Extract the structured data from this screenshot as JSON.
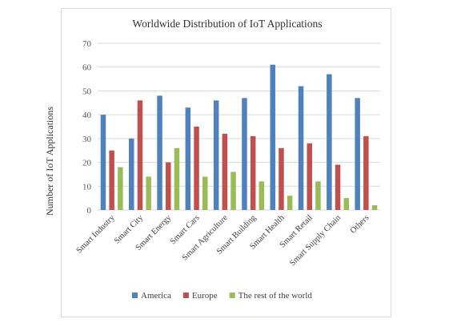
{
  "chart_data": {
    "type": "bar",
    "title": "Worldwide Distribution of IoT Applications",
    "ylabel": "Number of IoT Applications",
    "xlabel": "",
    "ylim": [
      0,
      70
    ],
    "yticks": [
      0,
      10,
      20,
      30,
      40,
      50,
      60,
      70
    ],
    "grid": true,
    "legend_position": "bottom",
    "categories": [
      "Smart Industry",
      "Smart City",
      "Smart Energy",
      "Smart Cars",
      "Smart Agriculture",
      "Smart Building",
      "Smart Health",
      "Smart Retail",
      "Smart Supply Chain",
      "Others"
    ],
    "series": [
      {
        "name": "America",
        "color": "#4f81bd",
        "values": [
          40,
          30,
          48,
          43,
          46,
          47,
          61,
          52,
          57,
          47
        ]
      },
      {
        "name": "Europe",
        "color": "#c0504d",
        "values": [
          25,
          46,
          20,
          35,
          32,
          31,
          26,
          28,
          19,
          31
        ]
      },
      {
        "name": "The rest of the world",
        "color": "#9bbb59",
        "values": [
          18,
          14,
          26,
          14,
          16,
          12,
          6,
          12,
          5,
          2
        ]
      }
    ]
  }
}
